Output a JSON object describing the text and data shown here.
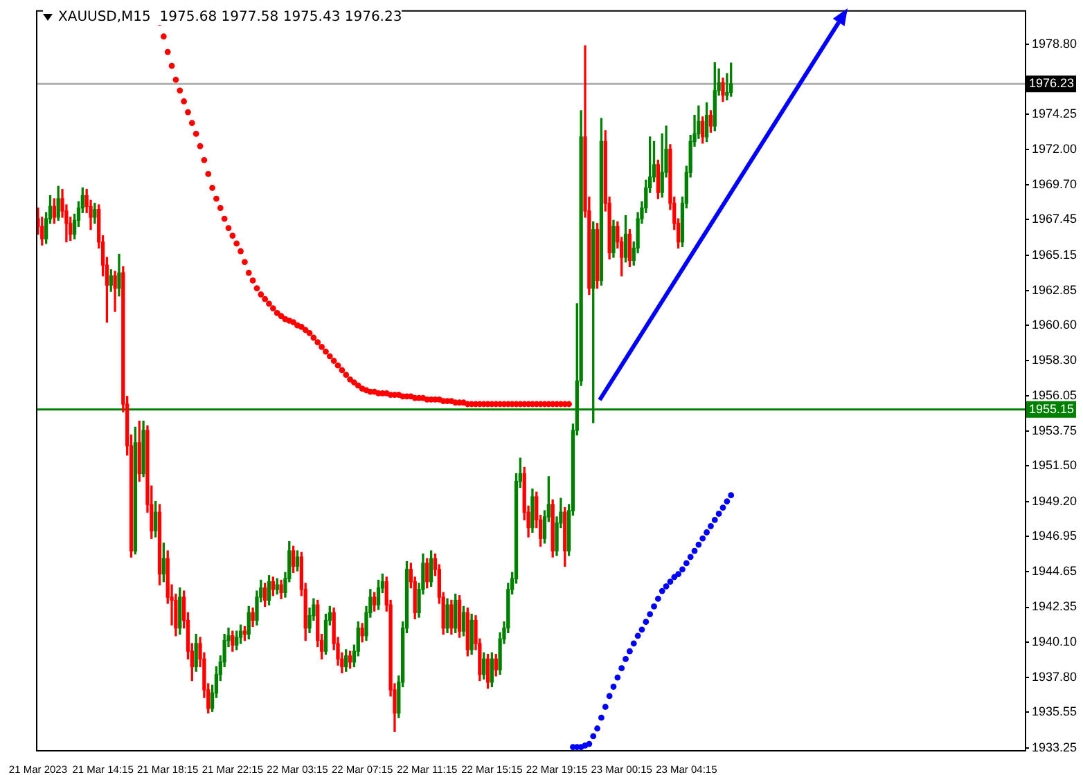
{
  "chart_data": {
    "type": "candlestick",
    "title": "XAUUSD,M15  1975.68 1977.58 1975.43 1976.23",
    "categories": [
      "21 Mar 2023",
      null,
      null,
      null,
      null,
      null,
      null,
      null,
      null,
      null,
      null,
      null,
      null,
      null,
      null,
      null,
      "21 Mar 14:15",
      null,
      null,
      null,
      null,
      null,
      null,
      null,
      null,
      null,
      null,
      null,
      null,
      null,
      null,
      null,
      "21 Mar 18:15",
      null,
      null,
      null,
      null,
      null,
      null,
      null,
      null,
      null,
      null,
      null,
      null,
      null,
      null,
      null,
      "21 Mar 22:15",
      null,
      null,
      null,
      null,
      null,
      null,
      null,
      null,
      null,
      null,
      null,
      null,
      null,
      null,
      null,
      "22 Mar 03:15",
      null,
      null,
      null,
      null,
      null,
      null,
      null,
      null,
      null,
      null,
      null,
      null,
      null,
      null,
      null,
      "22 Mar 07:15",
      null,
      null,
      null,
      null,
      null,
      null,
      null,
      null,
      null,
      null,
      null,
      null,
      null,
      null,
      null,
      "22 Mar 11:15",
      null,
      null,
      null,
      null,
      null,
      null,
      null,
      null,
      null,
      null,
      null,
      null,
      null,
      null,
      null,
      "22 Mar 15:15",
      null,
      null,
      null,
      null,
      null,
      null,
      null,
      null,
      null,
      null,
      null,
      null,
      null,
      null,
      null,
      "22 Mar 19:15",
      null,
      null,
      null,
      null,
      null,
      null,
      null,
      null,
      null,
      null,
      null,
      null,
      null,
      null,
      null,
      "23 Mar 00:15",
      null,
      null,
      null,
      null,
      null,
      null,
      null,
      null,
      null,
      null,
      null,
      null,
      null,
      null,
      null,
      "23 Mar 04:15",
      null,
      null,
      null,
      null,
      null,
      null,
      null,
      null,
      null,
      null,
      null,
      null,
      null,
      null,
      null,
      null,
      null,
      null,
      null,
      null,
      null,
      null,
      null,
      null,
      null,
      null,
      null,
      null,
      null,
      null,
      null,
      null,
      null,
      null,
      null,
      null,
      null,
      null,
      null,
      null,
      null,
      null,
      null,
      null,
      null,
      null,
      null,
      null,
      null,
      null,
      null,
      null,
      null,
      null,
      null,
      null,
      null,
      null,
      null,
      null,
      null,
      null,
      null,
      null,
      null,
      null,
      null,
      null,
      null,
      null,
      null,
      null,
      null,
      null,
      null,
      null,
      null,
      null,
      null,
      null,
      null,
      null,
      null
    ],
    "ohlc": [
      [
        1967.5,
        1968.2,
        1966.5,
        1967.0
      ],
      [
        1967.0,
        1967.6,
        1965.8,
        1966.2
      ],
      [
        1966.2,
        1967.9,
        1965.9,
        1967.5
      ],
      [
        1967.5,
        1969.0,
        1967.2,
        1968.3
      ],
      [
        1968.3,
        1968.8,
        1967.2,
        1967.6
      ],
      [
        1967.6,
        1969.6,
        1967.4,
        1968.8
      ],
      [
        1968.8,
        1969.4,
        1967.6,
        1968.0
      ],
      [
        1968.0,
        1968.4,
        1966.0,
        1967.2
      ],
      [
        1967.2,
        1967.6,
        1966.1,
        1966.5
      ],
      [
        1966.5,
        1967.8,
        1966.2,
        1967.4
      ],
      [
        1967.4,
        1968.6,
        1967.0,
        1968.2
      ],
      [
        1968.2,
        1969.5,
        1967.9,
        1969.0
      ],
      [
        1969.0,
        1969.4,
        1967.9,
        1968.3
      ],
      [
        1968.3,
        1968.7,
        1966.8,
        1967.6
      ],
      [
        1967.6,
        1968.5,
        1967.2,
        1968.1
      ],
      [
        1968.1,
        1968.4,
        1965.6,
        1966.0
      ],
      [
        1966.0,
        1966.4,
        1963.8,
        1964.5
      ],
      [
        1964.5,
        1965.0,
        1960.8,
        1963.2
      ],
      [
        1963.2,
        1964.2,
        1962.8,
        1963.8
      ],
      [
        1963.8,
        1964.1,
        1961.5,
        1963.0
      ],
      [
        1963.0,
        1965.2,
        1962.5,
        1964.0
      ],
      [
        1964.0,
        1964.4,
        1955.0,
        1955.5
      ],
      [
        1955.5,
        1956.0,
        1952.2,
        1952.8
      ],
      [
        1952.8,
        1953.5,
        1945.6,
        1946.0
      ],
      [
        1946.0,
        1954.0,
        1945.8,
        1953.0
      ],
      [
        1953.0,
        1954.4,
        1950.5,
        1951.0
      ],
      [
        1951.0,
        1954.4,
        1950.8,
        1953.8
      ],
      [
        1953.8,
        1954.1,
        1948.5,
        1949.0
      ],
      [
        1949.0,
        1950.2,
        1946.8,
        1947.3
      ],
      [
        1947.3,
        1949.2,
        1946.9,
        1948.5
      ],
      [
        1948.5,
        1949.0,
        1943.8,
        1944.5
      ],
      [
        1944.5,
        1946.5,
        1944.0,
        1945.5
      ],
      [
        1945.5,
        1946.0,
        1942.6,
        1943.0
      ],
      [
        1943.0,
        1943.8,
        1941.2,
        1942.8
      ],
      [
        1942.8,
        1943.2,
        1940.5,
        1941.0
      ],
      [
        1941.0,
        1943.6,
        1940.6,
        1943.0
      ],
      [
        1943.0,
        1943.4,
        1941.0,
        1941.5
      ],
      [
        1941.5,
        1942.0,
        1939.0,
        1939.5
      ],
      [
        1939.5,
        1940.0,
        1937.6,
        1938.5
      ],
      [
        1938.5,
        1940.6,
        1938.2,
        1940.0
      ],
      [
        1940.0,
        1940.4,
        1938.5,
        1939.0
      ],
      [
        1939.0,
        1939.4,
        1936.5,
        1937.0
      ],
      [
        1937.0,
        1937.4,
        1935.5,
        1935.8
      ],
      [
        1935.8,
        1937.3,
        1935.6,
        1936.8
      ],
      [
        1936.8,
        1938.5,
        1936.5,
        1938.0
      ],
      [
        1938.0,
        1939.2,
        1937.6,
        1938.8
      ],
      [
        1938.8,
        1940.6,
        1938.5,
        1940.2
      ],
      [
        1940.2,
        1941.0,
        1939.8,
        1940.5
      ],
      [
        1940.5,
        1940.8,
        1939.5,
        1939.9
      ],
      [
        1939.9,
        1940.8,
        1939.6,
        1940.4
      ],
      [
        1940.4,
        1941.2,
        1940.0,
        1940.8
      ],
      [
        1940.8,
        1941.1,
        1940.2,
        1940.6
      ],
      [
        1940.6,
        1942.4,
        1940.3,
        1942.0
      ],
      [
        1942.0,
        1942.3,
        1941.1,
        1941.5
      ],
      [
        1941.5,
        1943.4,
        1941.2,
        1943.0
      ],
      [
        1943.0,
        1944.1,
        1942.7,
        1943.6
      ],
      [
        1943.6,
        1943.9,
        1942.4,
        1942.8
      ],
      [
        1942.8,
        1944.4,
        1942.5,
        1944.0
      ],
      [
        1944.0,
        1944.3,
        1943.1,
        1943.5
      ],
      [
        1943.5,
        1944.2,
        1943.2,
        1943.8
      ],
      [
        1943.8,
        1944.1,
        1942.9,
        1943.3
      ],
      [
        1943.3,
        1944.6,
        1943.0,
        1944.2
      ],
      [
        1944.2,
        1946.6,
        1944.0,
        1946.0
      ],
      [
        1946.0,
        1946.3,
        1944.6,
        1945.0
      ],
      [
        1945.0,
        1946.0,
        1944.7,
        1945.6
      ],
      [
        1945.6,
        1945.9,
        1943.1,
        1943.5
      ],
      [
        1943.5,
        1943.9,
        1940.2,
        1941.0
      ],
      [
        1941.0,
        1942.3,
        1940.7,
        1941.8
      ],
      [
        1941.8,
        1942.9,
        1941.5,
        1942.5
      ],
      [
        1942.5,
        1942.8,
        1939.8,
        1940.2
      ],
      [
        1940.2,
        1940.6,
        1939.0,
        1939.5
      ],
      [
        1939.5,
        1941.9,
        1939.3,
        1941.5
      ],
      [
        1941.5,
        1942.4,
        1941.2,
        1942.0
      ],
      [
        1942.0,
        1942.3,
        1939.6,
        1940.0
      ],
      [
        1940.0,
        1940.4,
        1938.6,
        1939.0
      ],
      [
        1939.0,
        1939.4,
        1938.1,
        1938.5
      ],
      [
        1938.5,
        1939.6,
        1938.2,
        1939.2
      ],
      [
        1939.2,
        1939.5,
        1938.4,
        1938.8
      ],
      [
        1938.8,
        1939.9,
        1938.5,
        1939.5
      ],
      [
        1939.5,
        1941.4,
        1939.2,
        1941.0
      ],
      [
        1941.0,
        1941.3,
        1940.1,
        1940.5
      ],
      [
        1940.5,
        1942.4,
        1940.2,
        1942.0
      ],
      [
        1942.0,
        1943.5,
        1941.7,
        1943.0
      ],
      [
        1943.0,
        1943.3,
        1942.1,
        1942.5
      ],
      [
        1942.5,
        1944.1,
        1942.2,
        1943.6
      ],
      [
        1943.6,
        1944.5,
        1943.3,
        1944.0
      ],
      [
        1944.0,
        1944.3,
        1942.1,
        1942.5
      ],
      [
        1942.5,
        1942.8,
        1936.6,
        1937.0
      ],
      [
        1937.0,
        1937.4,
        1934.3,
        1935.5
      ],
      [
        1935.5,
        1937.9,
        1935.2,
        1937.5
      ],
      [
        1937.5,
        1941.4,
        1937.2,
        1941.0
      ],
      [
        1941.0,
        1945.3,
        1940.7,
        1944.8
      ],
      [
        1944.8,
        1945.2,
        1943.6,
        1944.0
      ],
      [
        1944.0,
        1944.3,
        1941.6,
        1942.0
      ],
      [
        1942.0,
        1943.9,
        1941.7,
        1943.5
      ],
      [
        1943.5,
        1945.8,
        1943.2,
        1945.2
      ],
      [
        1945.2,
        1945.5,
        1943.6,
        1944.0
      ],
      [
        1944.0,
        1946.0,
        1943.7,
        1945.5
      ],
      [
        1945.5,
        1945.8,
        1944.4,
        1944.8
      ],
      [
        1944.8,
        1945.1,
        1942.6,
        1943.0
      ],
      [
        1943.0,
        1943.3,
        1940.6,
        1941.0
      ],
      [
        1941.0,
        1942.9,
        1940.7,
        1942.5
      ],
      [
        1942.5,
        1942.8,
        1940.6,
        1941.0
      ],
      [
        1941.0,
        1943.2,
        1940.7,
        1942.8
      ],
      [
        1942.8,
        1943.1,
        1940.4,
        1940.8
      ],
      [
        1940.8,
        1942.4,
        1940.5,
        1942.0
      ],
      [
        1942.0,
        1942.3,
        1939.2,
        1939.6
      ],
      [
        1939.6,
        1941.9,
        1939.3,
        1941.5
      ],
      [
        1941.5,
        1941.8,
        1939.6,
        1940.0
      ],
      [
        1940.0,
        1940.3,
        1937.6,
        1938.0
      ],
      [
        1938.0,
        1939.4,
        1937.7,
        1939.0
      ],
      [
        1939.0,
        1939.3,
        1937.1,
        1937.5
      ],
      [
        1937.5,
        1939.4,
        1937.2,
        1939.0
      ],
      [
        1939.0,
        1939.3,
        1937.9,
        1938.3
      ],
      [
        1938.3,
        1940.7,
        1938.0,
        1940.3
      ],
      [
        1940.3,
        1941.4,
        1940.0,
        1941.0
      ],
      [
        1941.0,
        1943.9,
        1940.7,
        1943.5
      ],
      [
        1943.5,
        1944.6,
        1943.2,
        1944.2
      ],
      [
        1944.2,
        1951.0,
        1943.9,
        1950.5
      ],
      [
        1950.5,
        1952.0,
        1950.1,
        1951.0
      ],
      [
        1951.0,
        1951.4,
        1948.0,
        1948.5
      ],
      [
        1948.5,
        1948.9,
        1946.9,
        1947.5
      ],
      [
        1947.5,
        1950.0,
        1947.2,
        1949.5
      ],
      [
        1949.5,
        1949.8,
        1947.5,
        1948.0
      ],
      [
        1948.0,
        1948.3,
        1946.3,
        1946.8
      ],
      [
        1946.8,
        1948.6,
        1946.5,
        1948.2
      ],
      [
        1948.2,
        1950.8,
        1947.9,
        1949.0
      ],
      [
        1949.0,
        1949.3,
        1945.6,
        1946.0
      ],
      [
        1946.0,
        1948.2,
        1945.7,
        1947.8
      ],
      [
        1947.8,
        1949.4,
        1947.5,
        1948.5
      ],
      [
        1948.5,
        1948.8,
        1945.0,
        1946.0
      ],
      [
        1946.0,
        1949.0,
        1945.7,
        1948.6
      ],
      [
        1948.6,
        1954.2,
        1948.3,
        1953.8
      ],
      [
        1953.8,
        1962.0,
        1953.5,
        1957.0
      ],
      [
        1957.0,
        1974.5,
        1956.7,
        1972.8
      ],
      [
        1972.8,
        1978.7,
        1967.6,
        1968.0
      ],
      [
        1968.0,
        1968.9,
        1962.6,
        1963.0
      ],
      [
        1963.0,
        1967.3,
        1954.3,
        1966.8
      ],
      [
        1966.8,
        1967.2,
        1963.0,
        1963.5
      ],
      [
        1963.5,
        1974.0,
        1963.2,
        1972.5
      ],
      [
        1972.5,
        1973.2,
        1968.0,
        1968.5
      ],
      [
        1968.5,
        1968.9,
        1964.9,
        1965.3
      ],
      [
        1965.3,
        1967.4,
        1965.0,
        1967.0
      ],
      [
        1967.0,
        1967.3,
        1965.6,
        1966.0
      ],
      [
        1966.0,
        1966.3,
        1963.8,
        1965.0
      ],
      [
        1965.0,
        1967.7,
        1964.7,
        1966.5
      ],
      [
        1966.5,
        1966.8,
        1964.4,
        1964.8
      ],
      [
        1964.8,
        1966.0,
        1964.5,
        1965.6
      ],
      [
        1965.6,
        1967.9,
        1965.3,
        1967.5
      ],
      [
        1967.5,
        1968.6,
        1967.2,
        1968.2
      ],
      [
        1968.2,
        1970.0,
        1967.9,
        1969.5
      ],
      [
        1969.5,
        1972.8,
        1969.2,
        1970.2
      ],
      [
        1970.2,
        1972.5,
        1969.9,
        1971.0
      ],
      [
        1971.0,
        1971.3,
        1968.8,
        1969.2
      ],
      [
        1969.2,
        1973.0,
        1968.9,
        1970.5
      ],
      [
        1970.5,
        1973.5,
        1970.2,
        1972.0
      ],
      [
        1972.0,
        1972.3,
        1968.1,
        1968.5
      ],
      [
        1968.5,
        1968.9,
        1966.8,
        1967.2
      ],
      [
        1967.2,
        1967.5,
        1965.6,
        1966.0
      ],
      [
        1966.0,
        1968.9,
        1965.7,
        1968.5
      ],
      [
        1968.5,
        1970.9,
        1968.2,
        1970.5
      ],
      [
        1970.5,
        1972.9,
        1970.2,
        1972.5
      ],
      [
        1972.5,
        1974.2,
        1972.2,
        1973.0
      ],
      [
        1973.0,
        1974.8,
        1972.7,
        1973.8
      ],
      [
        1973.8,
        1974.1,
        1972.4,
        1972.8
      ],
      [
        1972.8,
        1975.0,
        1972.5,
        1974.2
      ],
      [
        1974.2,
        1974.5,
        1973.1,
        1973.5
      ],
      [
        1973.5,
        1977.6,
        1973.2,
        1975.8
      ],
      [
        1975.8,
        1977.2,
        1975.5,
        1976.3
      ],
      [
        1976.3,
        1976.6,
        1975.1,
        1975.5
      ],
      [
        1975.5,
        1976.9,
        1975.2,
        1975.68
      ],
      [
        1975.68,
        1977.58,
        1975.43,
        1976.23
      ],
      null,
      null,
      null,
      null,
      null,
      null,
      null,
      null,
      null,
      null,
      null,
      null,
      null,
      null,
      null,
      null,
      null,
      null,
      null,
      null,
      null,
      null,
      null,
      null,
      null,
      null,
      null,
      null,
      null,
      null,
      null,
      null,
      null,
      null,
      null,
      null,
      null,
      null,
      null,
      null,
      null,
      null,
      null,
      null,
      null,
      null,
      null,
      null,
      null,
      null,
      null,
      null,
      null,
      null,
      null,
      null,
      null,
      null,
      null,
      null,
      null,
      null,
      null,
      null,
      null,
      null,
      null,
      null,
      null,
      null,
      null,
      null
    ],
    "series": [
      {
        "type": "scatter",
        "color": "#ff0000",
        "values": [
          null,
          null,
          null,
          null,
          null,
          null,
          null,
          null,
          null,
          null,
          null,
          null,
          null,
          null,
          null,
          null,
          null,
          null,
          null,
          null,
          null,
          null,
          null,
          null,
          null,
          null,
          null,
          null,
          null,
          null,
          1980.2,
          1979.3,
          1978.3,
          1977.4,
          1976.5,
          1975.8,
          1975.1,
          1974.4,
          1973.7,
          1973.0,
          1972.2,
          1971.3,
          1970.4,
          1969.5,
          1968.8,
          1968.2,
          1967.5,
          1966.9,
          1966.4,
          1965.9,
          1965.4,
          1964.7,
          1964.0,
          1963.5,
          1963.0,
          1962.6,
          1962.3,
          1962.0,
          1961.7,
          1961.4,
          1961.2,
          1961.0,
          1960.9,
          1960.8,
          1960.6,
          1960.5,
          1960.3,
          1960.1,
          1959.8,
          1959.5,
          1959.2,
          1958.9,
          1958.6,
          1958.3,
          1958.0,
          1957.7,
          1957.4,
          1957.1,
          1956.9,
          1956.7,
          1956.5,
          1956.4,
          1956.3,
          1956.3,
          1956.2,
          1956.2,
          1956.2,
          1956.1,
          1956.1,
          1956.1,
          1956.0,
          1956.0,
          1956.0,
          1955.9,
          1955.9,
          1955.9,
          1955.8,
          1955.8,
          1955.8,
          1955.8,
          1955.7,
          1955.7,
          1955.7,
          1955.6,
          1955.6,
          1955.6,
          1955.5,
          1955.5,
          1955.5,
          1955.5,
          1955.5,
          1955.5,
          1955.5,
          1955.5,
          1955.5,
          1955.5,
          1955.5,
          1955.5,
          1955.5,
          1955.5,
          1955.5,
          1955.5,
          1955.5,
          1955.5,
          1955.5,
          1955.5,
          1955.5,
          1955.5,
          1955.5,
          1955.5,
          1955.5,
          1955.5,
          null,
          null,
          null,
          null,
          null,
          null,
          null,
          null,
          null,
          null,
          null,
          null,
          null,
          null,
          null,
          null,
          null,
          null,
          null,
          null,
          null,
          null,
          null,
          null,
          null,
          null,
          null,
          null,
          null,
          null,
          null,
          null,
          null,
          null,
          null,
          null,
          null,
          null,
          null,
          null,
          null,
          null,
          null,
          null,
          null,
          null,
          null,
          null,
          null,
          null,
          null,
          null,
          null,
          null,
          null,
          null,
          null,
          null,
          null,
          null,
          null,
          null,
          null,
          null,
          null,
          null,
          null,
          null,
          null,
          null,
          null,
          null,
          null,
          null,
          null,
          null,
          null,
          null,
          null,
          null,
          null,
          null,
          null,
          null,
          null,
          null,
          null,
          null,
          null,
          null,
          null,
          null,
          null,
          null,
          null,
          null,
          null,
          null,
          null,
          null,
          null,
          null,
          null,
          null,
          null,
          null,
          null,
          null,
          null,
          null,
          null,
          null
        ]
      },
      {
        "type": "scatter",
        "color": "#0000ff",
        "values": [
          null,
          null,
          null,
          null,
          null,
          null,
          null,
          null,
          null,
          null,
          null,
          null,
          null,
          null,
          null,
          null,
          null,
          null,
          null,
          null,
          null,
          null,
          null,
          null,
          null,
          null,
          null,
          null,
          null,
          null,
          null,
          null,
          null,
          null,
          null,
          null,
          null,
          null,
          null,
          null,
          null,
          null,
          null,
          null,
          null,
          null,
          null,
          null,
          null,
          null,
          null,
          null,
          null,
          null,
          null,
          null,
          null,
          null,
          null,
          null,
          null,
          null,
          null,
          null,
          null,
          null,
          null,
          null,
          null,
          null,
          null,
          null,
          null,
          null,
          null,
          null,
          null,
          null,
          null,
          null,
          null,
          null,
          null,
          null,
          null,
          null,
          null,
          null,
          null,
          null,
          null,
          null,
          null,
          null,
          null,
          null,
          null,
          null,
          null,
          null,
          null,
          null,
          null,
          null,
          null,
          null,
          null,
          null,
          null,
          null,
          null,
          null,
          null,
          null,
          null,
          null,
          null,
          null,
          null,
          null,
          null,
          null,
          null,
          null,
          null,
          null,
          null,
          null,
          null,
          null,
          null,
          null,
          1933.3,
          1933.3,
          1933.3,
          1933.4,
          1933.5,
          1934.0,
          1934.5,
          1935.2,
          1935.9,
          1936.6,
          1937.2,
          1937.8,
          1938.4,
          1939.0,
          1939.5,
          1940.0,
          1940.5,
          1940.9,
          1941.4,
          1941.9,
          1942.4,
          1942.9,
          1943.4,
          1943.7,
          1944.0,
          1944.3,
          1944.5,
          1944.8,
          1945.2,
          1945.6,
          1946.0,
          1946.4,
          1946.8,
          1947.2,
          1947.6,
          1948.0,
          1948.4,
          1948.8,
          1949.2,
          1949.6,
          null,
          null,
          null,
          null,
          null,
          null,
          null,
          null,
          null,
          null,
          null,
          null,
          null,
          null,
          null,
          null,
          null,
          null,
          null,
          null,
          null,
          null,
          null,
          null,
          null,
          null,
          null,
          null,
          null,
          null,
          null,
          null,
          null,
          null,
          null,
          null,
          null,
          null,
          null,
          null,
          null,
          null,
          null,
          null,
          null,
          null,
          null,
          null,
          null,
          null,
          null,
          null,
          null,
          null,
          null,
          null,
          null,
          null,
          null,
          null,
          null,
          null,
          null,
          null,
          null,
          null,
          null,
          null,
          null,
          null,
          null,
          null
        ]
      }
    ],
    "marker": "circle",
    "ylim": [
      1933.1,
      1981.0
    ],
    "yticks": [
      1933.25,
      1935.55,
      {
        "value": 1937.8,
        "label": "1937.80"
      },
      {
        "value": 1940.1,
        "label": "1940.10"
      },
      1942.35,
      1944.65,
      1946.95,
      {
        "value": 1949.2,
        "label": "1949.20"
      },
      {
        "value": 1951.5,
        "label": "1951.50"
      },
      1953.75,
      1956.05,
      {
        "value": 1958.3,
        "label": "1958.30"
      },
      {
        "value": 1960.6,
        "label": "1960.60"
      },
      1962.85,
      1965.15,
      1967.45,
      {
        "value": 1969.7,
        "label": "1969.70"
      },
      {
        "value": 1972.0,
        "label": "1972.00"
      },
      1974.25,
      {
        "value": 1978.8,
        "label": "1978.80"
      }
    ],
    "ref_lines": [
      {
        "axis": "y",
        "value": 1955.15,
        "label": "1955.15",
        "color": "#008000"
      },
      {
        "axis": "y",
        "value": 1976.23,
        "label": "1976.23",
        "color": "#b0b0b0"
      }
    ],
    "grid": false,
    "legend": false
  }
}
